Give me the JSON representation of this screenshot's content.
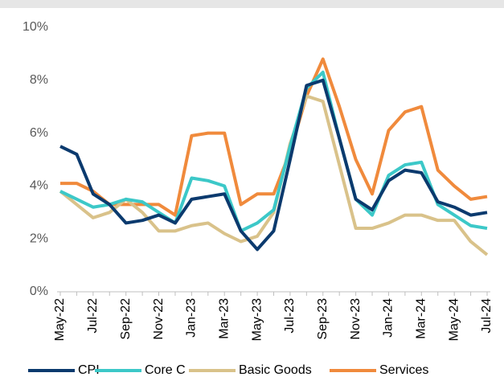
{
  "chart_data": {
    "type": "line",
    "categories": [
      "May-22",
      null,
      "Jul-22",
      null,
      "Sep-22",
      null,
      "Nov-22",
      null,
      "Jan-23",
      null,
      "Mar-23",
      null,
      "May-23",
      null,
      "Jul-23",
      null,
      "Sep-23",
      null,
      "Nov-23",
      null,
      "Jan-24",
      null,
      "Mar-24",
      null,
      "May-24",
      null,
      "Jul-24"
    ],
    "series": [
      {
        "name": "CPI",
        "color": "#0b3a6e",
        "values": [
          5.5,
          5.2,
          3.7,
          3.3,
          2.6,
          2.7,
          2.9,
          2.6,
          3.5,
          3.6,
          3.7,
          2.3,
          1.6,
          2.3,
          5.0,
          7.8,
          8.0,
          5.8,
          3.5,
          3.1,
          4.2,
          4.6,
          4.5,
          3.4,
          3.2,
          2.9,
          3.0
        ]
      },
      {
        "name": "Core C",
        "color": "#3cc8c8",
        "values": [
          3.8,
          3.5,
          3.2,
          3.3,
          3.5,
          3.4,
          3.0,
          2.6,
          4.3,
          4.2,
          4.0,
          2.3,
          2.6,
          3.1,
          5.5,
          7.7,
          8.3,
          5.8,
          3.5,
          2.9,
          4.4,
          4.8,
          4.9,
          3.3,
          2.9,
          2.5,
          2.4
        ]
      },
      {
        "name": "Basic Goods",
        "color": "#d9c28a",
        "values": [
          3.8,
          3.3,
          2.8,
          3.0,
          3.5,
          3.0,
          2.3,
          2.3,
          2.5,
          2.6,
          2.2,
          1.9,
          2.1,
          3.0,
          5.6,
          7.4,
          7.2,
          4.8,
          2.4,
          2.4,
          2.6,
          2.9,
          2.9,
          2.7,
          2.7,
          1.9,
          1.4
        ]
      },
      {
        "name": "Services",
        "color": "#f08a3c",
        "values": [
          4.1,
          4.1,
          3.8,
          3.3,
          3.3,
          3.3,
          3.3,
          2.9,
          5.9,
          6.0,
          6.0,
          3.3,
          3.7,
          3.7,
          5.3,
          7.4,
          8.8,
          7.0,
          5.0,
          3.7,
          6.1,
          6.8,
          7.0,
          4.6,
          4.0,
          3.5,
          3.6
        ]
      }
    ],
    "ylim": [
      0,
      10
    ],
    "yticks": [
      {
        "value": 0,
        "label": "0%"
      },
      {
        "value": 2,
        "label": "2%"
      },
      {
        "value": 4,
        "label": "4%"
      },
      {
        "value": 6,
        "label": "6%"
      },
      {
        "value": 8,
        "label": "8%"
      },
      {
        "value": 10,
        "label": "10%"
      }
    ],
    "legend": "bottom"
  }
}
